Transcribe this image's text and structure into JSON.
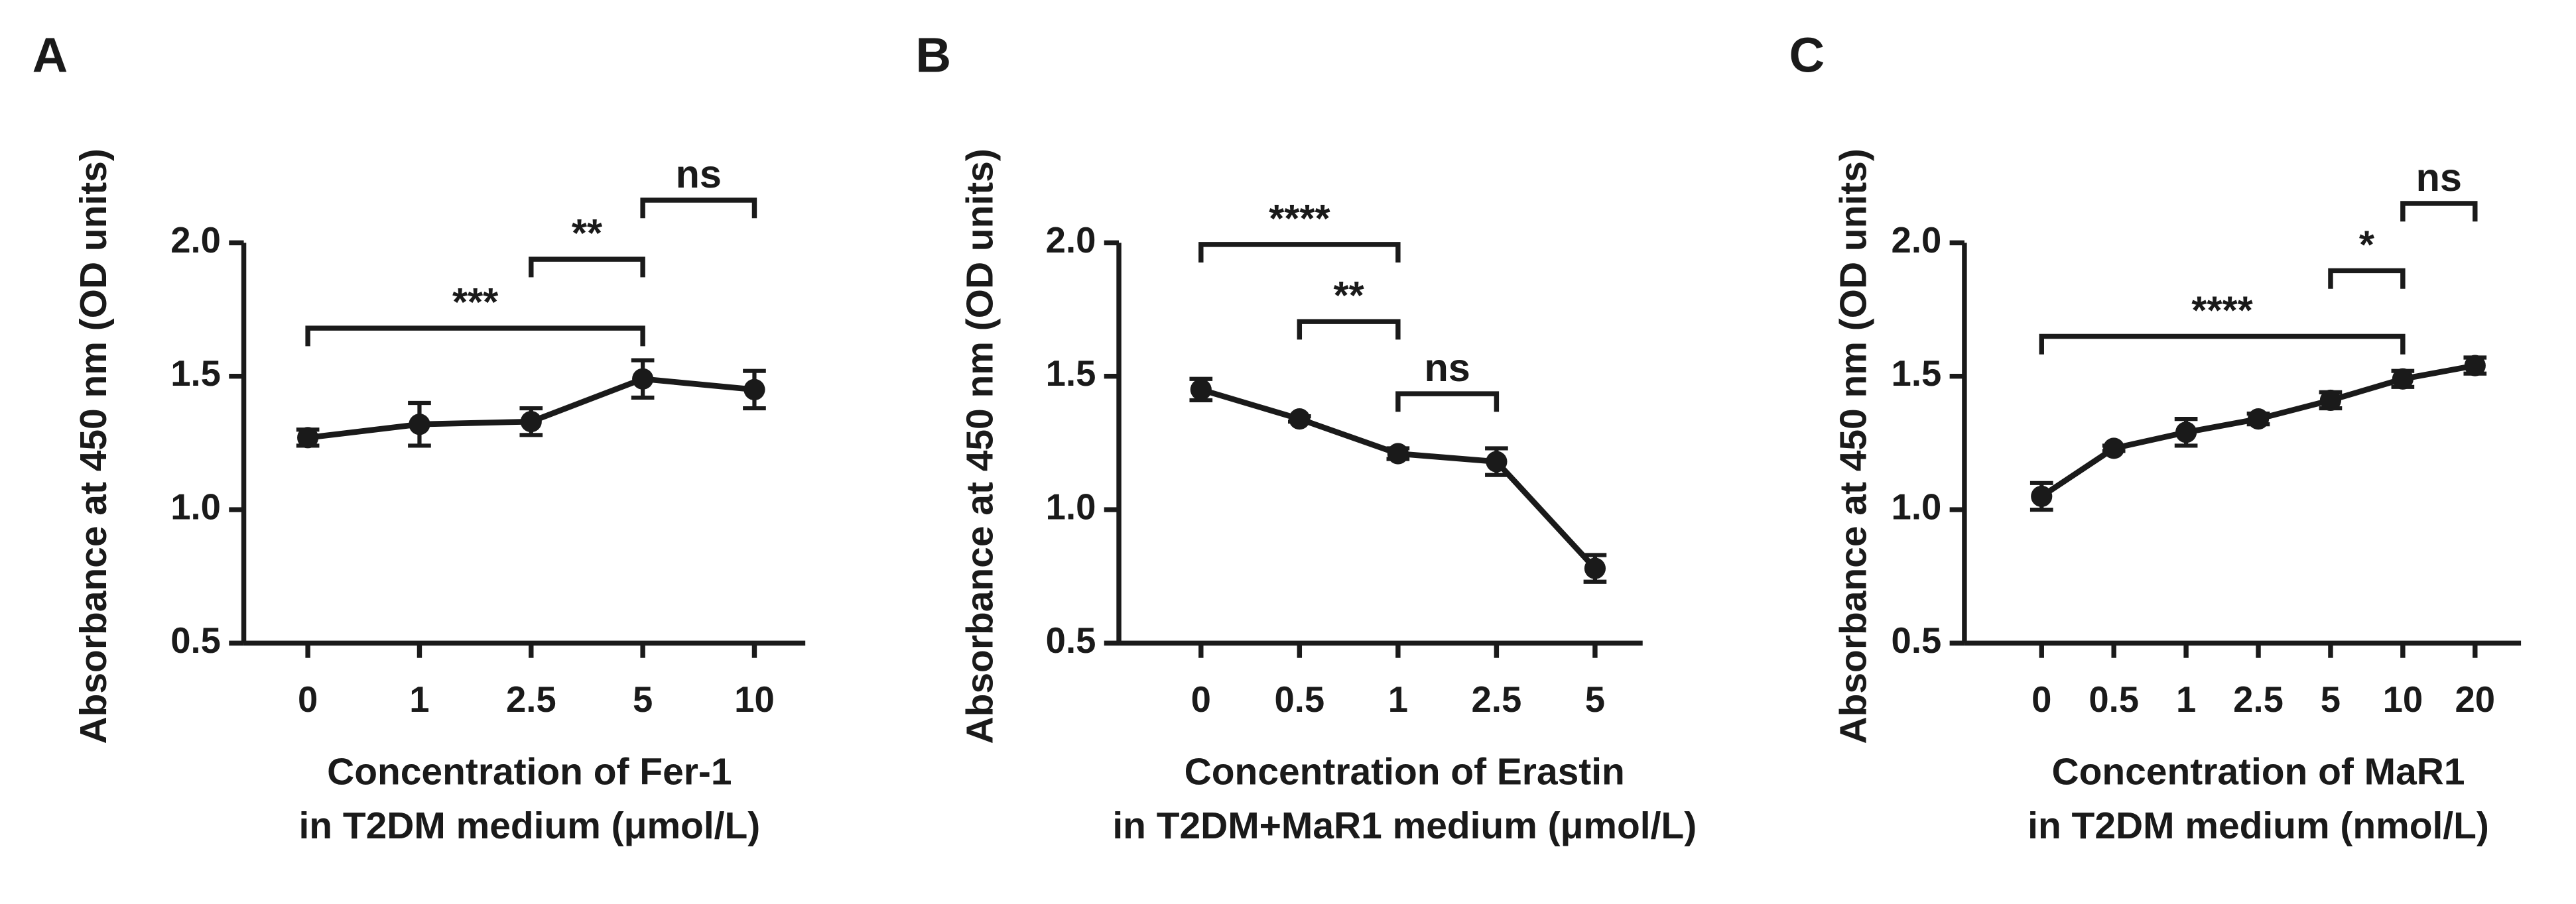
{
  "chart_data": [
    {
      "type": "line",
      "panel": "A",
      "y_label": "Absorbance at 450 nm (OD units)",
      "x_label": [
        "Concentration of Fer-1",
        "in T2DM medium (μmol/L)"
      ],
      "categories": [
        "0",
        "1",
        "2.5",
        "5",
        "10"
      ],
      "values": [
        1.27,
        1.32,
        1.33,
        1.49,
        1.45
      ],
      "errors": [
        0.03,
        0.08,
        0.05,
        0.07,
        0.07
      ],
      "color": "#1a1a1a",
      "ylim": [
        0.5,
        2.0
      ],
      "yticks": [
        {
          "value": 0.5,
          "label": "0.5"
        },
        {
          "value": 1.0,
          "label": "1.0"
        },
        {
          "value": 1.5,
          "label": "1.5"
        },
        {
          "value": 2.0,
          "label": "2.0"
        }
      ],
      "annotations": [
        {
          "text": "***",
          "between": [
            "0",
            "5"
          ]
        },
        {
          "text": "**",
          "between": [
            "2.5",
            "5"
          ]
        },
        {
          "text": "ns",
          "between": [
            "5",
            "10"
          ]
        }
      ]
    },
    {
      "type": "line",
      "panel": "B",
      "y_label": "Absorbance at 450 nm (OD units)",
      "x_label": [
        "Concentration of Erastin",
        "in T2DM+MaR1 medium (μmol/L)"
      ],
      "categories": [
        "0",
        "0.5",
        "1",
        "2.5",
        "5"
      ],
      "values": [
        1.45,
        1.34,
        1.21,
        1.18,
        0.78
      ],
      "errors": [
        0.04,
        0.01,
        0.02,
        0.05,
        0.05
      ],
      "color": "#1a1a1a",
      "ylim": [
        0.5,
        2.0
      ],
      "yticks": [
        {
          "value": 0.5,
          "label": "0.5"
        },
        {
          "value": 1.0,
          "label": "1.0"
        },
        {
          "value": 1.5,
          "label": "1.5"
        },
        {
          "value": 2.0,
          "label": "2.0"
        }
      ],
      "annotations": [
        {
          "text": "****",
          "between": [
            "0",
            "1"
          ]
        },
        {
          "text": "**",
          "between": [
            "0.5",
            "1"
          ]
        },
        {
          "text": "ns",
          "between": [
            "1",
            "2.5"
          ]
        }
      ]
    },
    {
      "type": "line",
      "panel": "C",
      "y_label": "Absorbance at 450 nm (OD units)",
      "x_label": [
        "Concentration of MaR1",
        "in T2DM medium (nmol/L)"
      ],
      "categories": [
        "0",
        "0.5",
        "1",
        "2.5",
        "5",
        "10",
        "20"
      ],
      "values": [
        1.05,
        1.23,
        1.29,
        1.34,
        1.41,
        1.49,
        1.54
      ],
      "errors": [
        0.05,
        0.01,
        0.05,
        0.02,
        0.03,
        0.03,
        0.03
      ],
      "color": "#1a1a1a",
      "ylim": [
        0.5,
        2.0
      ],
      "yticks": [
        {
          "value": 0.5,
          "label": "0.5"
        },
        {
          "value": 1.0,
          "label": "1.0"
        },
        {
          "value": 1.5,
          "label": "1.5"
        },
        {
          "value": 2.0,
          "label": "2.0"
        }
      ],
      "annotations": [
        {
          "text": "****",
          "between": [
            "0",
            "10"
          ]
        },
        {
          "text": "*",
          "between": [
            "5",
            "10"
          ]
        },
        {
          "text": "ns",
          "between": [
            "10",
            "20"
          ]
        }
      ]
    }
  ]
}
